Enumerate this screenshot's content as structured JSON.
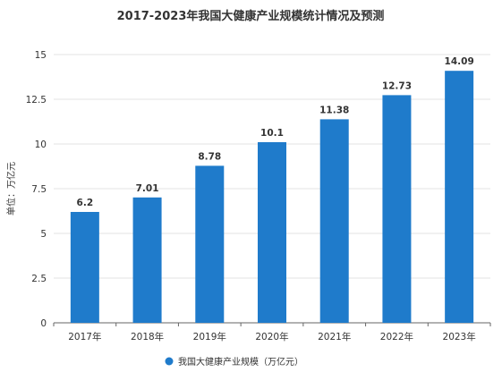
{
  "chart_data": {
    "type": "bar",
    "title": "2017-2023年我国大健康产业规模统计情况及预测",
    "ylabel": "单位：万亿元",
    "xlabel": "",
    "categories": [
      "2017年",
      "2018年",
      "2019年",
      "2020年",
      "2021年",
      "2022年",
      "2023年"
    ],
    "series": [
      {
        "name": "我国大健康产业规模（万亿元）",
        "values": [
          6.2,
          7.01,
          8.78,
          10.1,
          11.38,
          12.73,
          14.09
        ],
        "labels": [
          "6.2",
          "7.01",
          "8.78",
          "10.1",
          "11.38",
          "12.73",
          "14.09"
        ]
      }
    ],
    "ylim": [
      0,
      15
    ],
    "yticks": [
      0,
      2.5,
      5,
      7.5,
      10,
      12.5,
      15
    ],
    "ytick_labels": [
      "0",
      "2.5",
      "5",
      "7.5",
      "10",
      "12.5",
      "15"
    ],
    "grid": true,
    "legend_position": "bottom",
    "colors": {
      "bar": "#1f7bcb",
      "grid": "#e3e3e3",
      "axis": "#333333",
      "text": "#333333"
    }
  }
}
